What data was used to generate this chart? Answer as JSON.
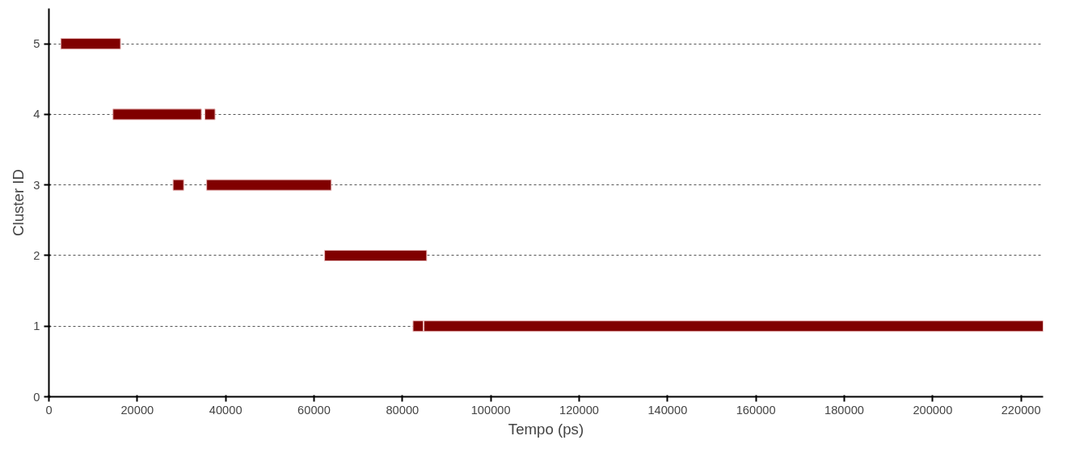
{
  "chart_data": {
    "type": "bar",
    "orientation": "horizontal",
    "xlabel": "Tempo (ps)",
    "ylabel": "Cluster ID",
    "categories": [
      "5",
      "4",
      "3",
      "2",
      "1",
      "0"
    ],
    "series": [
      {
        "color": "#800000",
        "base": [
          2700,
          14500,
          28100,
          62400,
          82400,
          null
        ],
        "values": [
          13500,
          20000,
          2400,
          23100,
          2300,
          null
        ]
      },
      {
        "color": "#800000",
        "base": [
          null,
          35300,
          35700,
          null,
          84900,
          null
        ],
        "values": [
          null,
          2300,
          28200,
          null,
          140100,
          null
        ]
      }
    ],
    "xlim": [
      0,
      225000
    ],
    "xticks": [
      0,
      20000,
      40000,
      60000,
      80000,
      100000,
      120000,
      140000,
      160000,
      180000,
      200000,
      220000
    ],
    "grid": "y"
  }
}
